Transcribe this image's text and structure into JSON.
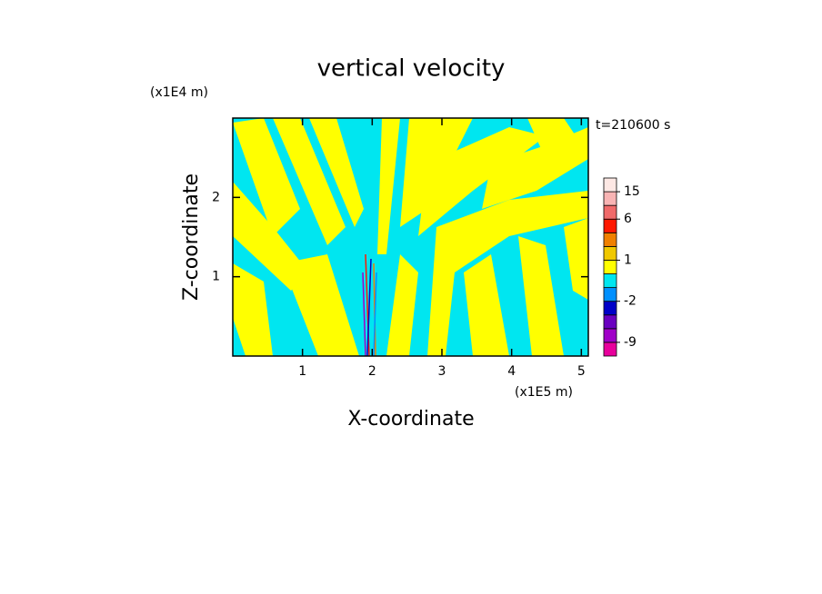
{
  "chart_data": {
    "type": "contour",
    "title": "vertical velocity",
    "x_label": "X-coordinate",
    "y_label": "Z-coordinate",
    "x_unit": "(x1E5 m)",
    "y_unit": "(x1E4 m)",
    "annotation": "t=210600 s",
    "xlim": [
      0,
      5.1
    ],
    "ylim": [
      0,
      3
    ],
    "xticks": [
      1,
      2,
      3,
      4,
      5
    ],
    "yticks": [
      1,
      2
    ],
    "colorbar": {
      "levels": [
        -12,
        -9,
        -6,
        -4,
        -2,
        -1,
        0,
        1,
        2,
        4,
        6,
        10,
        15,
        20
      ],
      "colors": [
        "#e8009c",
        "#a000c8",
        "#6a00c0",
        "#0000c8",
        "#0090ff",
        "#00e6f0",
        "#ffff00",
        "#f0c800",
        "#f08000",
        "#ff1800",
        "#f06a6a",
        "#f8b4b4",
        "#fde8e4"
      ],
      "ticks": [
        -9,
        -2,
        1,
        6,
        15
      ]
    }
  }
}
